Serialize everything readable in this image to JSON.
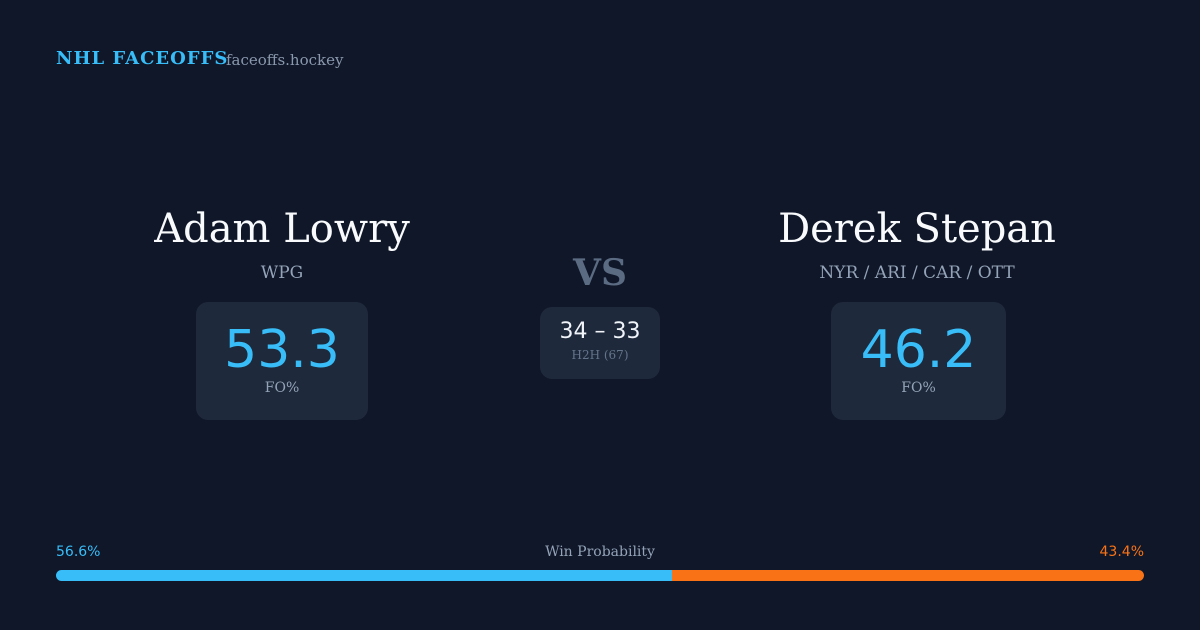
{
  "header": {
    "brand": "NHL FACEOFFS",
    "site": "faceoffs.hockey"
  },
  "players": [
    {
      "name": "Adam Lowry",
      "teams": "WPG",
      "fo_pct": 53.3,
      "fo_label": "FO%"
    },
    {
      "name": "Derek Stepan",
      "teams": "NYR / ARI / CAR / OTT",
      "fo_pct": 46.2,
      "fo_label": "FO%"
    }
  ],
  "versus": "VS",
  "head_to_head": {
    "score": "34 – 33",
    "label": "H2H (67)"
  },
  "win_probability": {
    "label": "Win Probability",
    "values": [
      56.6,
      43.4
    ],
    "value_labels": [
      "56.6%",
      "43.4%"
    ],
    "colors": [
      "#38bdf8",
      "#f97316"
    ]
  }
}
